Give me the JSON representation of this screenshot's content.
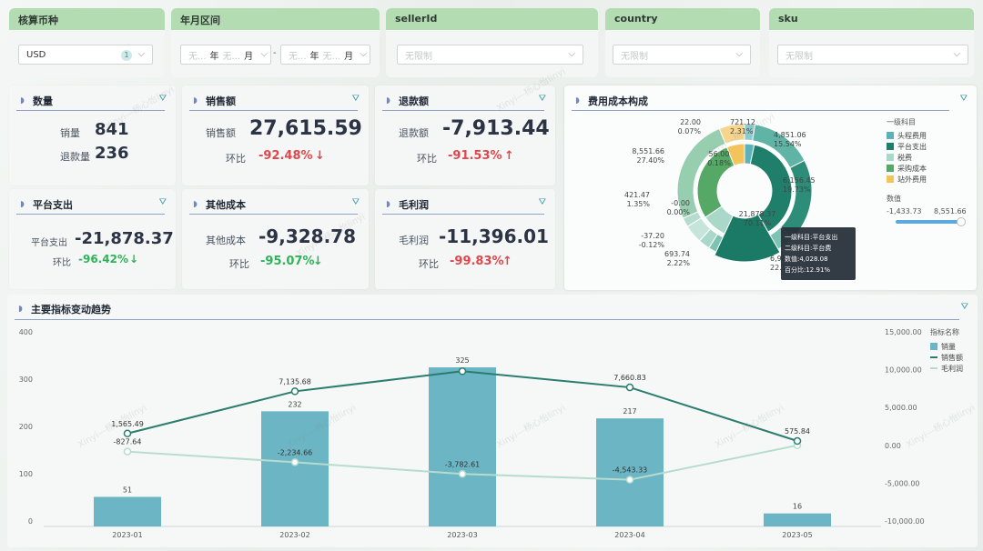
{
  "filters": [
    {
      "title": "核算币种",
      "value": "USD",
      "badge": "1"
    },
    {
      "title": "年月区间",
      "year_ph": "无...",
      "year_unit": "年",
      "month_ph": "无...",
      "month_unit": "月",
      "sep": "-"
    },
    {
      "title": "sellerId",
      "placeholder": "无限制"
    },
    {
      "title": "country",
      "placeholder": "无限制"
    },
    {
      "title": "sku",
      "placeholder": "无限制"
    }
  ],
  "kpi": {
    "qty": {
      "title": "数量",
      "sales_label": "销量",
      "sales_value": "841",
      "refund_label": "退款量",
      "refund_value": "236"
    },
    "sales": {
      "title": "销售额",
      "label": "销售额",
      "value": "27,615.59",
      "mom_label": "环比",
      "mom_value": "-92.48%",
      "arrow": "↓"
    },
    "refund": {
      "title": "退款额",
      "label": "退款额",
      "value": "-7,913.44",
      "mom_label": "环比",
      "mom_value": "-91.53%",
      "arrow": "↑"
    },
    "platform": {
      "title": "平台支出",
      "label": "平台支出",
      "value": "-21,878.37",
      "mom_label": "环比",
      "mom_value": "-96.42%",
      "arrow": "↓"
    },
    "other": {
      "title": "其他成本",
      "label": "其他成本",
      "value": "-9,328.78",
      "mom_label": "环比",
      "mom_value": "-95.07%",
      "arrow": "↓"
    },
    "profit": {
      "title": "毛利润",
      "label": "毛利润",
      "value": "-11,396.01",
      "mom_label": "环比",
      "mom_value": "-99.83%",
      "arrow": "↑"
    }
  },
  "watermark": "Xinyi—杨心怡linyi",
  "pie": {
    "title": "费用成本构成",
    "legend_title": "一级科目",
    "legend": [
      {
        "name": "头程费用",
        "color": "#5bb3b9"
      },
      {
        "name": "平台支出",
        "color": "#1f7f6b"
      },
      {
        "name": "税费",
        "color": "#a9d8c9"
      },
      {
        "name": "采购成本",
        "color": "#55a865"
      },
      {
        "name": "站外费用",
        "color": "#f3c35c"
      }
    ],
    "value_title": "数值",
    "range_min": "-1,433.73",
    "range_max": "8,551.66",
    "labels": [
      {
        "v": "22.00",
        "p": "0.07%"
      },
      {
        "v": "721.12",
        "p": "2.31%"
      },
      {
        "v": "4,851.06",
        "p": "15.54%"
      },
      {
        "v": "6,156.45",
        "p": "19.73%"
      },
      {
        "v": "6,983.92",
        "p": "22.38%"
      },
      {
        "v": "693.74",
        "p": "2.22%"
      },
      {
        "v": "-37.20",
        "p": "-0.12%"
      },
      {
        "v": "421.47",
        "p": "1.35%"
      },
      {
        "v": "8,551.66",
        "p": "27.40%"
      },
      {
        "v": "-0.00",
        "p": "0.00%"
      },
      {
        "v": "56.00",
        "p": "0.18%"
      },
      {
        "v": "21,878.37",
        "p": "70.11%"
      }
    ],
    "tooltip": [
      "一级科目:平台支出",
      "二级科目:平台费",
      "数值:4,028.08",
      "百分比:12.91%"
    ]
  },
  "trend": {
    "title": "主要指标变动趋势",
    "legend_title": "指标名称",
    "legend": [
      {
        "name": "销量",
        "color": "#6bb5c4"
      },
      {
        "name": "销售额",
        "color": "#2b7d6f"
      },
      {
        "name": "毛利润",
        "color": "#b7dccf"
      }
    ]
  },
  "chart_data": {
    "type": "bar",
    "title": "主要指标变动趋势",
    "categories": [
      "2023-01",
      "2023-02",
      "2023-03",
      "2023-04",
      "2023-05"
    ],
    "series": [
      {
        "name": "销量",
        "type": "bar",
        "axis": "left",
        "values": [
          51,
          232,
          325,
          217,
          16
        ]
      },
      {
        "name": "销售额",
        "type": "line",
        "axis": "right",
        "values": [
          1565.49,
          7135.68,
          9800,
          7660.83,
          575.84
        ]
      },
      {
        "name": "毛利润",
        "type": "line",
        "axis": "right",
        "values": [
          -827.64,
          -2234.66,
          -3782.61,
          -4543.33,
          0
        ]
      }
    ],
    "bar_labels": [
      "51",
      "232",
      "325",
      "217",
      "16"
    ],
    "sales_labels": [
      "1,565.49",
      "7,135.68",
      "",
      "7,660.83",
      "575.84"
    ],
    "profit_labels": [
      "-827.64",
      "-2,234.66",
      "-3,782.61",
      "-4,543.33",
      ""
    ],
    "y_left": {
      "ticks": [
        "400",
        "300",
        "200",
        "100",
        "0"
      ],
      "range": [
        0,
        400
      ]
    },
    "y_right": {
      "ticks": [
        "15,000.00",
        "10,000.00",
        "5,000.00",
        "0.00",
        "-5,000.00",
        "-10,000.00"
      ],
      "range": [
        -10000,
        15000
      ]
    }
  }
}
